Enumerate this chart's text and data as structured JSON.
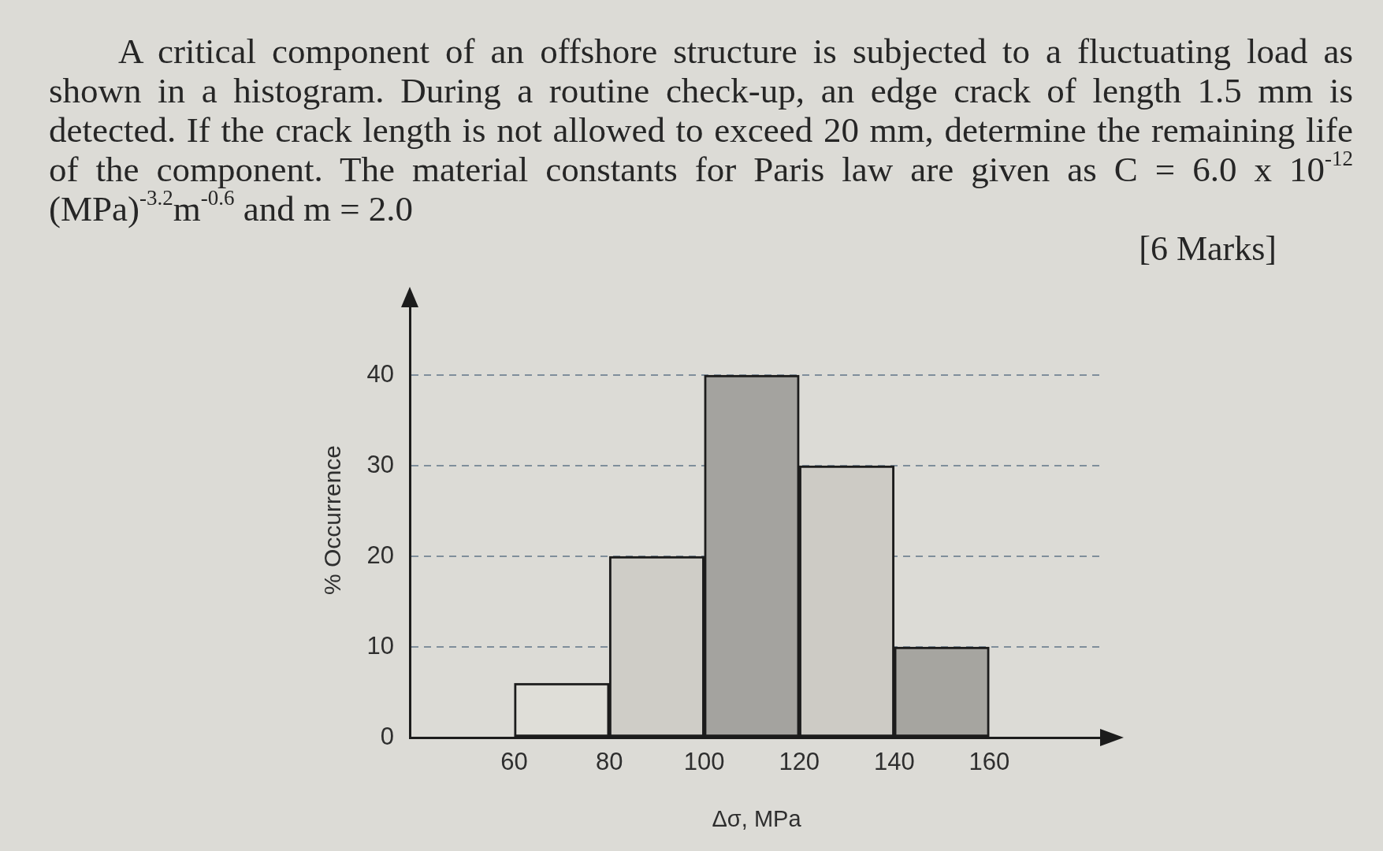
{
  "chart_data": {
    "type": "histogram",
    "title": "A critical component of an offshore structure is subjected to a fluctuating load as shown in a histogram. During a routine check-up, an edge crack of length 1.5 mm is detected. If the crack length is not allowed to exceed 20 mm, determine the remaining life of the component. The material constants for Paris law are given as C = 6.0 x 10$^{-12}$ (MPa)$^{-3.2}$m$^{-0.6}$ and m = 2.0",
    "annotations": [
      "[6 Marks]"
    ],
    "xlabel": "Δσ, MPa",
    "ylabel": "% Occurrence",
    "bins": [
      60,
      80,
      100,
      120,
      140,
      160
    ],
    "values": [
      6,
      20,
      40,
      30,
      10
    ],
    "colors": [
      "#dfded8",
      "#cfcdc7",
      "#a4a39f",
      "#cdcbc5",
      "#a6a5a0"
    ],
    "xlim": [
      38,
      184
    ],
    "xticks": [
      60,
      80,
      100,
      120,
      140,
      160
    ],
    "ylim": [
      0,
      48
    ],
    "yticks": [
      0,
      10,
      20,
      30,
      40
    ],
    "grid": "y"
  }
}
